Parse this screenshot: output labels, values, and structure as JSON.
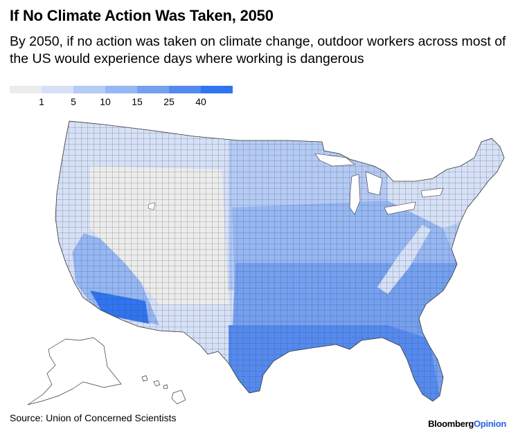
{
  "title": "If No Climate Action Was Taken, 2050",
  "subtitle": "By 2050, if no action was taken on climate change, outdoor workers across most of the US would experience days where working is dangerous",
  "legend": {
    "colors": [
      "#ececec",
      "#d6e1f8",
      "#b4cbf6",
      "#95b7f4",
      "#74a0f1",
      "#548af0",
      "#2f74f0"
    ],
    "labels": [
      "1",
      "5",
      "10",
      "15",
      "25",
      "40"
    ]
  },
  "source": "Source: Union of Concerned Scientists",
  "brand": {
    "part1": "Bloomberg",
    "part2": "Opinion"
  },
  "map_regions": {
    "colors": {
      "c0": "#ececec",
      "c1": "#d6e1f8",
      "c2": "#b4cbf6",
      "c3": "#95b7f4",
      "c4": "#74a0f1",
      "c5": "#548af0",
      "c6": "#2f74f0"
    }
  }
}
